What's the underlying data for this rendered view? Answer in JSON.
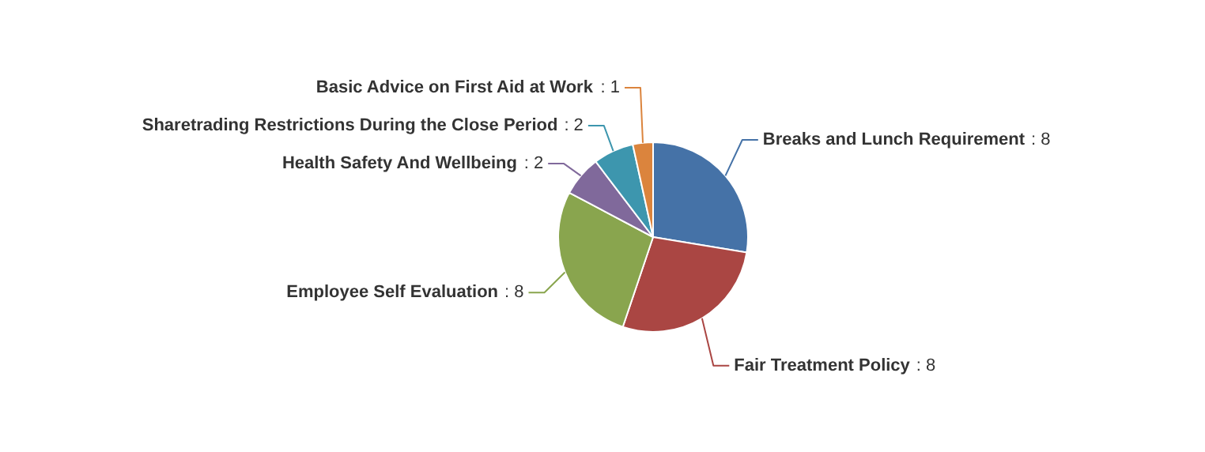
{
  "chart_data": {
    "type": "pie",
    "categories": [
      "Breaks and Lunch Requirement",
      "Fair Treatment Policy",
      "Employee Self Evaluation",
      "Health Safety And Wellbeing",
      "Sharetrading Restrictions During the Close Period",
      "Basic Advice on First Aid at Work"
    ],
    "values": [
      8,
      8,
      8,
      2,
      2,
      1
    ],
    "colors": [
      "#4572a7",
      "#aa4643",
      "#89a54e",
      "#80699b",
      "#3d96ae",
      "#db843d"
    ],
    "value_labels": [
      ": 8",
      ": 8",
      ": 8",
      ": 2",
      ": 2",
      ": 1"
    ],
    "legend": false
  }
}
